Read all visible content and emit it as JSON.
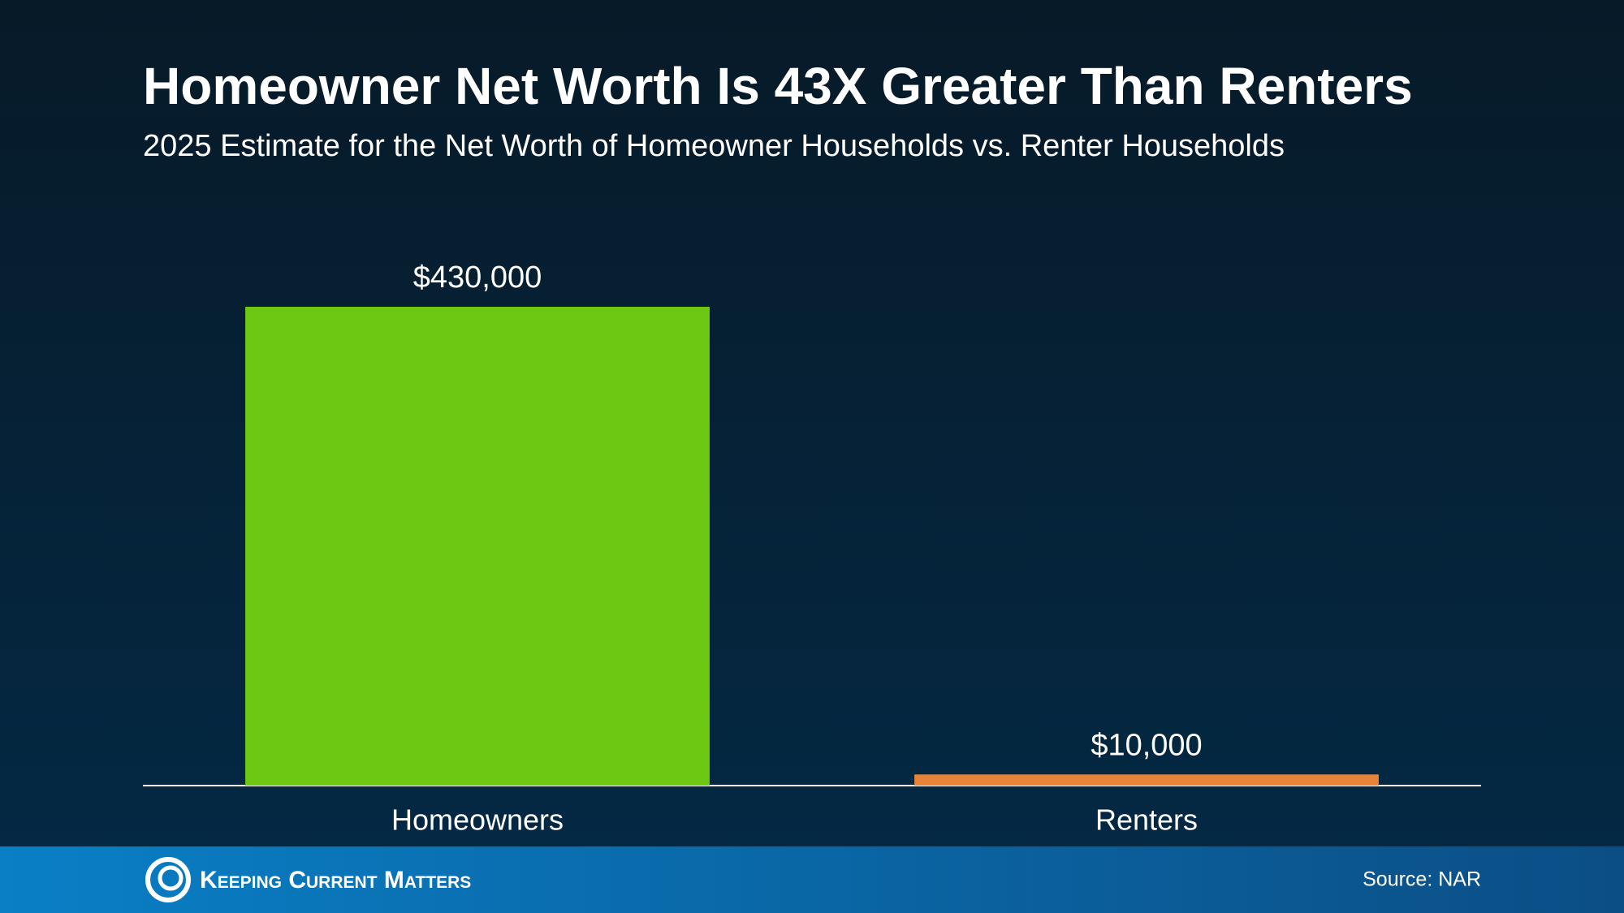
{
  "chart_data": {
    "type": "bar",
    "title": "Homeowner Net Worth Is 43X Greater Than Renters",
    "subtitle": "2025 Estimate for the Net Worth of Homeowner Households vs. Renter Households",
    "categories": [
      "Homeowners",
      "Renters"
    ],
    "values": [
      430000,
      10000
    ],
    "value_labels": [
      "$430,000",
      "$10,000"
    ],
    "colors": [
      "#6cc812",
      "#e8833a"
    ]
  },
  "footer": {
    "brand": "Keeping Current Matters",
    "source": "Source: NAR"
  }
}
